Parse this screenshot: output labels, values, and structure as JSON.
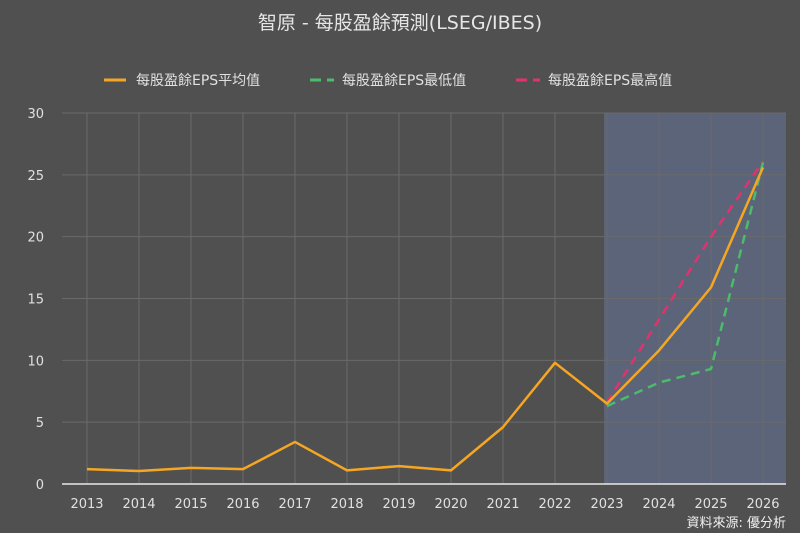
{
  "title": "智原 - 每股盈餘預測(LSEG/IBES)",
  "legend": [
    {
      "label": "每股盈餘EPS平均值",
      "color": "#f5a623",
      "style": "solid"
    },
    {
      "label": "每股盈餘EPS最低值",
      "color": "#4cbb6c",
      "style": "dashed"
    },
    {
      "label": "每股盈餘EPS最高值",
      "color": "#e0336e",
      "style": "dashed"
    }
  ],
  "source": "資料來源: 優分析",
  "colors": {
    "background": "#505050",
    "forecast_shade": "#5b6478",
    "grid": "#6a6a6a",
    "avg": "#f5a623",
    "min": "#4cbb6c",
    "max": "#e0336e"
  },
  "chart_data": {
    "type": "line",
    "title": "智原 - 每股盈餘預測(LSEG/IBES)",
    "xlabel": "",
    "ylabel": "",
    "ylim": [
      0,
      30
    ],
    "yticks": [
      0,
      5,
      10,
      15,
      20,
      25,
      30
    ],
    "categories": [
      "2013",
      "2014",
      "2015",
      "2016",
      "2017",
      "2018",
      "2019",
      "2020",
      "2021",
      "2022",
      "2023",
      "2024",
      "2025",
      "2026"
    ],
    "grid": true,
    "legend_position": "top",
    "forecast_shaded_from": "2023",
    "series": [
      {
        "name": "每股盈餘EPS平均值",
        "values": [
          1.2,
          1.05,
          1.3,
          1.2,
          3.4,
          1.1,
          1.45,
          1.1,
          4.6,
          9.8,
          6.5,
          10.8,
          15.9,
          25.6
        ]
      },
      {
        "name": "每股盈餘EPS最低值",
        "values": [
          null,
          null,
          null,
          null,
          null,
          null,
          null,
          null,
          null,
          null,
          6.3,
          8.2,
          9.3,
          26.0
        ]
      },
      {
        "name": "每股盈餘EPS最高值",
        "values": [
          null,
          null,
          null,
          null,
          null,
          null,
          null,
          null,
          null,
          null,
          6.6,
          13.3,
          20.0,
          26.1
        ]
      }
    ]
  }
}
